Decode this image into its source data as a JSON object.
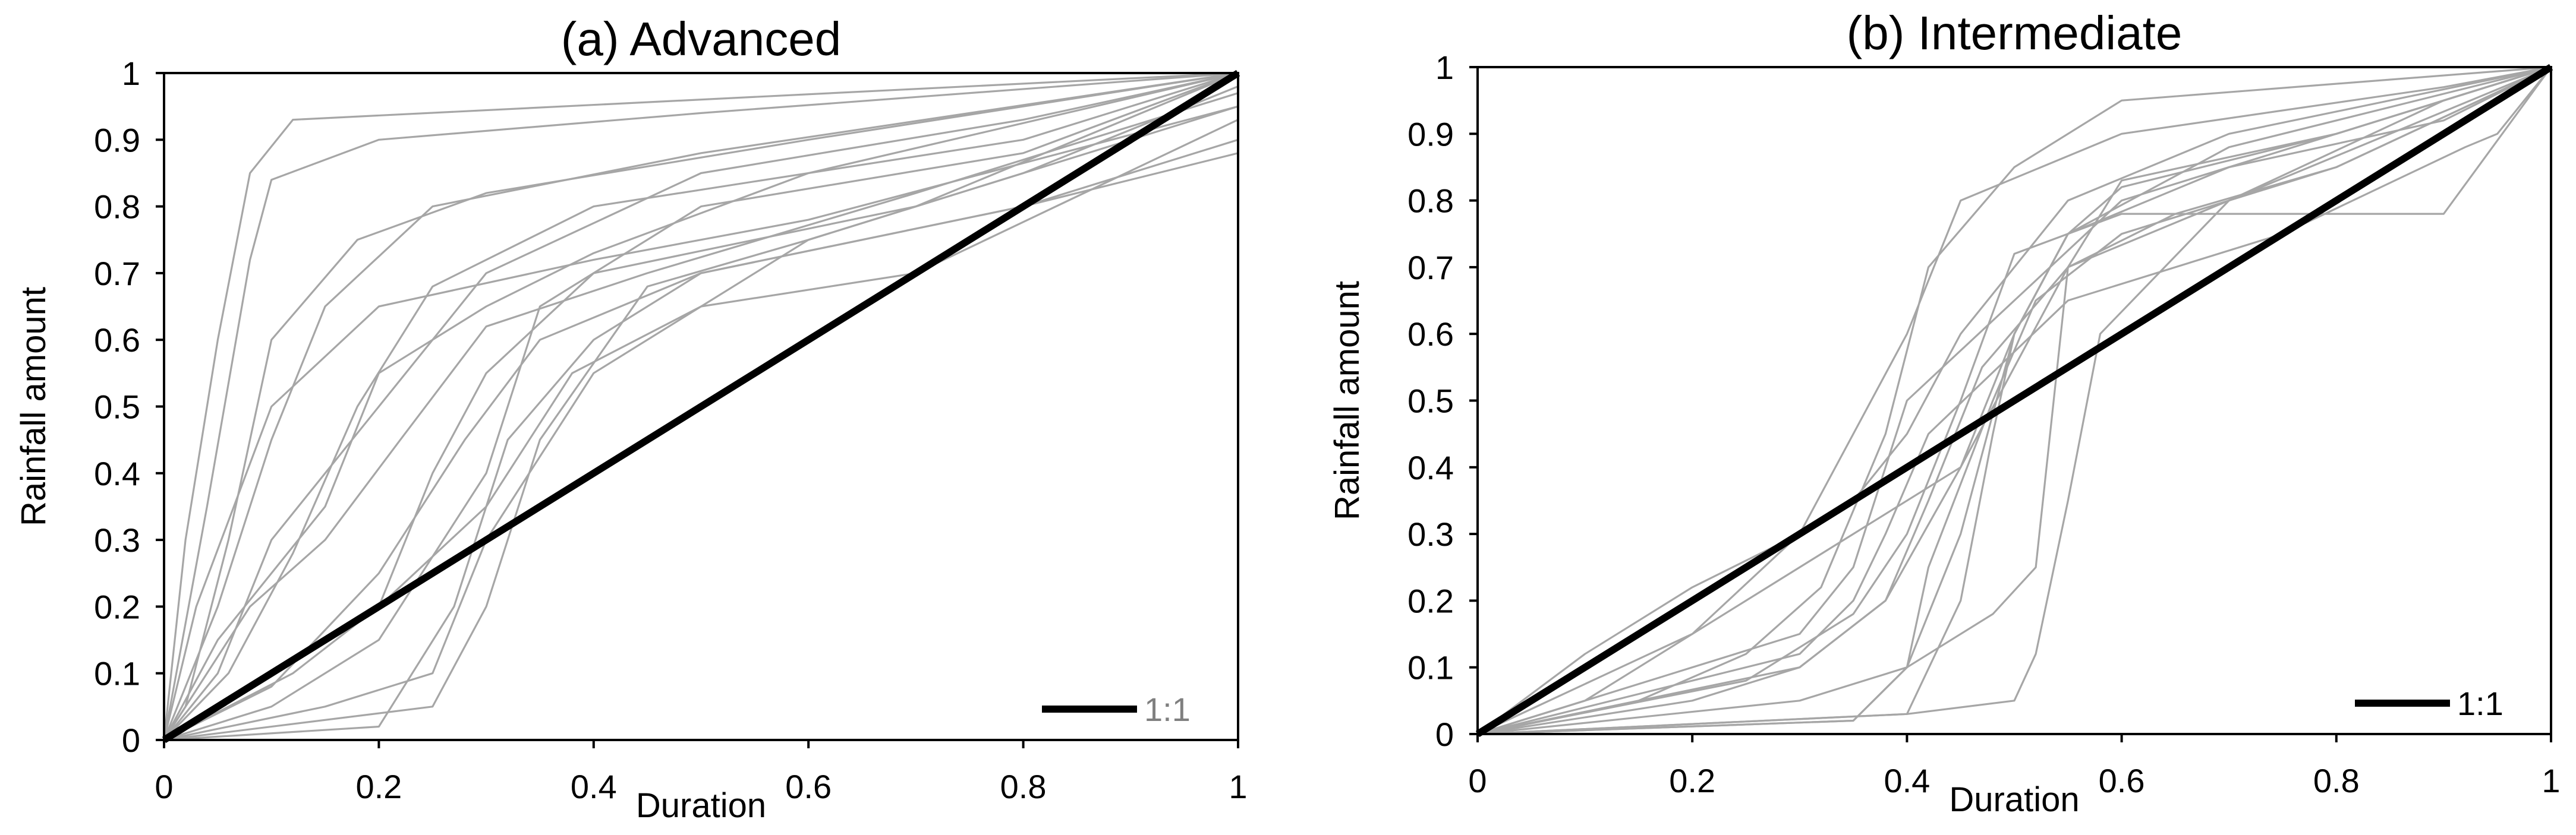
{
  "chart_data": [
    {
      "type": "line",
      "title": "(a) Advanced",
      "xlabel": "Duration",
      "ylabel": "Rainfall amount",
      "xlim": [
        0,
        1
      ],
      "ylim": [
        0,
        1
      ],
      "x_ticks": [
        "0",
        "0.2",
        "0.4",
        "0.6",
        "0.8",
        "1"
      ],
      "y_ticks": [
        "0",
        "0.1",
        "0.2",
        "0.3",
        "0.4",
        "0.5",
        "0.6",
        "0.7",
        "0.8",
        "0.9",
        "1"
      ],
      "grid": false,
      "legend": {
        "position": "bottom-right",
        "entries": [
          "1:1"
        ]
      },
      "reference_line": {
        "name": "1:1",
        "x": [
          0,
          1
        ],
        "y": [
          0,
          1
        ],
        "color": "#000000"
      },
      "curve_color": "#a6a6a6",
      "series": [
        {
          "x": [
            0,
            0.02,
            0.05,
            0.08,
            0.12,
            1
          ],
          "y": [
            0,
            0.3,
            0.6,
            0.85,
            0.93,
            1
          ]
        },
        {
          "x": [
            0,
            0.04,
            0.08,
            0.1,
            0.2,
            0.5,
            1
          ],
          "y": [
            0,
            0.35,
            0.72,
            0.84,
            0.9,
            0.94,
            1
          ]
        },
        {
          "x": [
            0,
            0.05,
            0.1,
            0.15,
            0.25,
            0.5,
            1
          ],
          "y": [
            0,
            0.2,
            0.45,
            0.65,
            0.8,
            0.88,
            1
          ]
        },
        {
          "x": [
            0,
            0.05,
            0.1,
            0.2,
            0.3,
            0.5,
            0.8,
            1
          ],
          "y": [
            0,
            0.1,
            0.3,
            0.5,
            0.7,
            0.85,
            0.93,
            1
          ]
        },
        {
          "x": [
            0,
            0.1,
            0.2,
            0.3,
            0.35,
            0.5,
            0.8,
            1
          ],
          "y": [
            0,
            0.05,
            0.15,
            0.4,
            0.65,
            0.8,
            0.88,
            1
          ]
        },
        {
          "x": [
            0,
            0.1,
            0.2,
            0.25,
            0.3,
            0.4,
            0.7,
            1
          ],
          "y": [
            0,
            0.1,
            0.2,
            0.4,
            0.55,
            0.7,
            0.8,
            1
          ]
        },
        {
          "x": [
            0,
            0.05,
            0.15,
            0.2,
            0.3,
            0.4,
            0.6,
            1
          ],
          "y": [
            0,
            0.15,
            0.35,
            0.55,
            0.65,
            0.73,
            0.85,
            1
          ]
        },
        {
          "x": [
            0,
            0.15,
            0.25,
            0.3,
            0.4,
            0.6,
            1
          ],
          "y": [
            0,
            0.05,
            0.1,
            0.3,
            0.55,
            0.75,
            0.95
          ]
        },
        {
          "x": [
            0,
            0.2,
            0.27,
            0.32,
            0.4,
            0.5,
            0.8,
            1
          ],
          "y": [
            0,
            0.02,
            0.2,
            0.45,
            0.6,
            0.7,
            0.8,
            0.9
          ]
        },
        {
          "x": [
            0,
            0.1,
            0.2,
            0.28,
            0.35,
            0.5,
            0.8,
            1
          ],
          "y": [
            0,
            0.08,
            0.25,
            0.45,
            0.6,
            0.7,
            0.8,
            0.88
          ]
        },
        {
          "x": [
            0,
            0.03,
            0.1,
            0.2,
            0.4,
            0.6,
            1
          ],
          "y": [
            0,
            0.2,
            0.5,
            0.65,
            0.72,
            0.78,
            0.95
          ]
        },
        {
          "x": [
            0,
            0.08,
            0.15,
            0.22,
            0.3,
            0.45,
            0.7,
            1
          ],
          "y": [
            0,
            0.2,
            0.3,
            0.45,
            0.62,
            0.7,
            0.82,
            0.97
          ]
        },
        {
          "x": [
            0,
            0.12,
            0.2,
            0.3,
            0.38,
            0.5,
            0.7,
            1
          ],
          "y": [
            0,
            0.1,
            0.2,
            0.35,
            0.55,
            0.65,
            0.7,
            0.93
          ]
        },
        {
          "x": [
            0,
            0.25,
            0.3,
            0.35,
            0.45,
            0.6,
            0.8,
            1
          ],
          "y": [
            0,
            0.05,
            0.2,
            0.45,
            0.68,
            0.75,
            0.85,
            0.98
          ]
        },
        {
          "x": [
            0,
            0.06,
            0.12,
            0.18,
            0.25,
            0.4,
            0.8,
            1
          ],
          "y": [
            0,
            0.1,
            0.28,
            0.5,
            0.68,
            0.8,
            0.9,
            1
          ]
        },
        {
          "x": [
            0,
            0.02,
            0.06,
            0.1,
            0.18,
            0.3,
            0.6,
            1
          ],
          "y": [
            0,
            0.05,
            0.3,
            0.6,
            0.75,
            0.82,
            0.9,
            1
          ]
        }
      ]
    },
    {
      "type": "line",
      "title": "(b) Intermediate",
      "xlabel": "Duration",
      "ylabel": "Rainfall amount",
      "xlim": [
        0,
        1
      ],
      "ylim": [
        0,
        1
      ],
      "x_ticks": [
        "0",
        "0.2",
        "0.4",
        "0.6",
        "0.8",
        "1"
      ],
      "y_ticks": [
        "0",
        "0.1",
        "0.2",
        "0.3",
        "0.4",
        "0.5",
        "0.6",
        "0.7",
        "0.8",
        "0.9",
        "1"
      ],
      "grid": false,
      "legend": {
        "position": "bottom-right",
        "entries": [
          "1:1"
        ]
      },
      "reference_line": {
        "name": "1:1",
        "x": [
          0,
          1
        ],
        "y": [
          0,
          1
        ],
        "color": "#000000"
      },
      "curve_color": "#a6a6a6",
      "series": [
        {
          "x": [
            0,
            0.1,
            0.2,
            0.3,
            0.35,
            0.4,
            0.45,
            0.55,
            0.7,
            1
          ],
          "y": [
            0,
            0.12,
            0.22,
            0.3,
            0.35,
            0.45,
            0.6,
            0.8,
            0.9,
            1
          ]
        },
        {
          "x": [
            0,
            0.2,
            0.3,
            0.38,
            0.45,
            0.5,
            0.55,
            0.7,
            1
          ],
          "y": [
            0,
            0.05,
            0.1,
            0.2,
            0.4,
            0.6,
            0.75,
            0.88,
            1
          ]
        },
        {
          "x": [
            0,
            0.2,
            0.3,
            0.35,
            0.4,
            0.5,
            0.6,
            0.9,
            1
          ],
          "y": [
            0,
            0.1,
            0.15,
            0.25,
            0.5,
            0.65,
            0.8,
            0.95,
            1
          ]
        },
        {
          "x": [
            0,
            0.3,
            0.4,
            0.45,
            0.5,
            0.55,
            0.6,
            0.8,
            1
          ],
          "y": [
            0,
            0.05,
            0.1,
            0.3,
            0.6,
            0.75,
            0.82,
            0.9,
            1
          ]
        },
        {
          "x": [
            0,
            0.35,
            0.4,
            0.48,
            0.52,
            0.55,
            0.6,
            0.8,
            1
          ],
          "y": [
            0,
            0.02,
            0.1,
            0.18,
            0.25,
            0.7,
            0.83,
            0.9,
            1
          ]
        },
        {
          "x": [
            0,
            0.4,
            0.5,
            0.52,
            0.55,
            0.58,
            0.7,
            0.9,
            1
          ],
          "y": [
            0,
            0.03,
            0.05,
            0.12,
            0.35,
            0.6,
            0.8,
            0.95,
            1
          ]
        },
        {
          "x": [
            0,
            0.15,
            0.25,
            0.32,
            0.38,
            0.42,
            0.5,
            0.6,
            1
          ],
          "y": [
            0,
            0.05,
            0.12,
            0.22,
            0.45,
            0.7,
            0.85,
            0.95,
            1
          ]
        },
        {
          "x": [
            0,
            0.2,
            0.3,
            0.35,
            0.4,
            0.45,
            0.6,
            0.9,
            1
          ],
          "y": [
            0,
            0.15,
            0.3,
            0.45,
            0.6,
            0.8,
            0.9,
            0.97,
            1
          ]
        },
        {
          "x": [
            0,
            0.1,
            0.25,
            0.35,
            0.45,
            0.5,
            0.55,
            0.7,
            1
          ],
          "y": [
            0,
            0.05,
            0.2,
            0.3,
            0.4,
            0.55,
            0.7,
            0.8,
            1
          ]
        },
        {
          "x": [
            0,
            0.3,
            0.38,
            0.42,
            0.47,
            0.55,
            0.65,
            0.8,
            1
          ],
          "y": [
            0,
            0.1,
            0.2,
            0.35,
            0.55,
            0.7,
            0.78,
            0.85,
            1
          ]
        },
        {
          "x": [
            0,
            0.25,
            0.35,
            0.4,
            0.45,
            0.5,
            0.6,
            0.9,
            1
          ],
          "y": [
            0,
            0.08,
            0.18,
            0.3,
            0.5,
            0.72,
            0.78,
            0.78,
            1
          ]
        },
        {
          "x": [
            0,
            0.3,
            0.35,
            0.38,
            0.42,
            0.55,
            0.75,
            0.92,
            0.95,
            1
          ],
          "y": [
            0,
            0.12,
            0.2,
            0.3,
            0.45,
            0.65,
            0.75,
            0.88,
            0.9,
            1
          ]
        },
        {
          "x": [
            0,
            0.4,
            0.45,
            0.48,
            0.5,
            0.55,
            0.7,
            0.9,
            1
          ],
          "y": [
            0,
            0.03,
            0.2,
            0.45,
            0.6,
            0.75,
            0.85,
            0.92,
            1
          ]
        },
        {
          "x": [
            0,
            0.35,
            0.4,
            0.42,
            0.48,
            0.52,
            0.6,
            0.8,
            1
          ],
          "y": [
            0,
            0.02,
            0.1,
            0.25,
            0.5,
            0.65,
            0.75,
            0.85,
            1
          ]
        }
      ]
    }
  ]
}
